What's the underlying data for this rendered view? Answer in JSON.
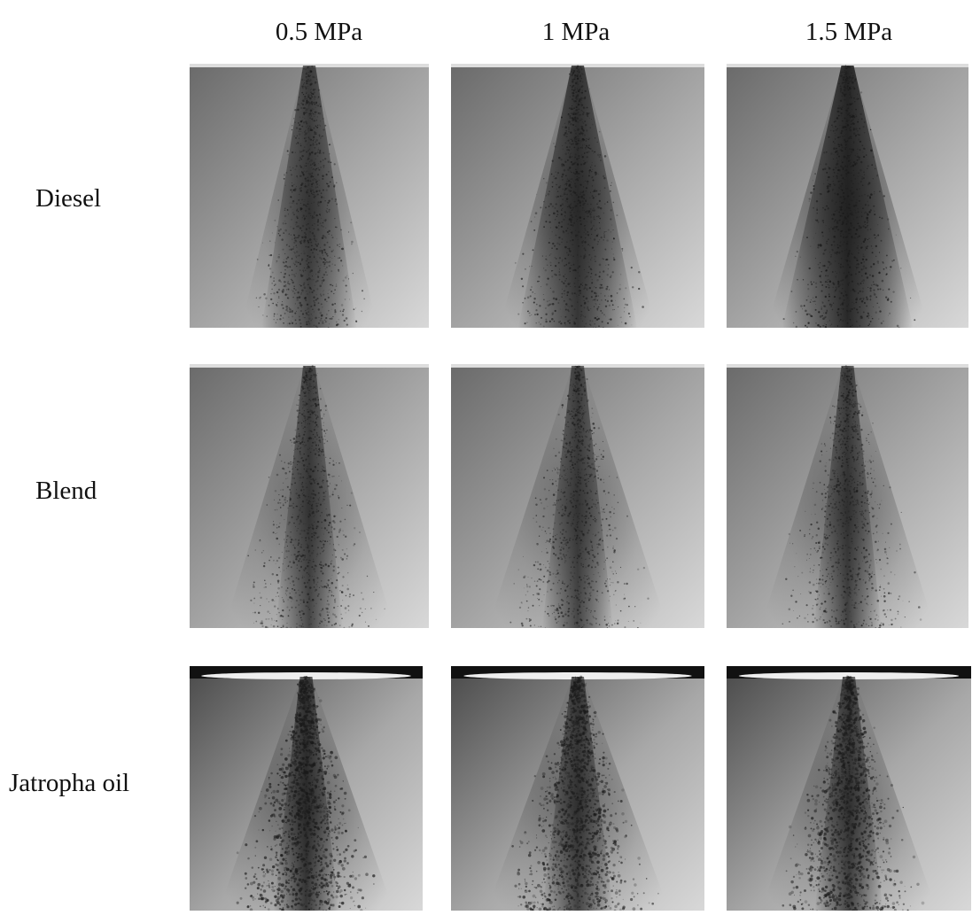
{
  "columns": [
    {
      "label": "0.5 MPa"
    },
    {
      "label": "1 MPa"
    },
    {
      "label": "1.5 MPa"
    }
  ],
  "rows": [
    {
      "label": "Diesel",
      "style": "diesel",
      "density": [
        0.55,
        0.75,
        0.95
      ]
    },
    {
      "label": "Blend",
      "style": "blend",
      "density": [
        0.55,
        0.55,
        0.6
      ]
    },
    {
      "label": "Jatropha oil",
      "style": "jatropha",
      "density": [
        0.75,
        0.6,
        0.6
      ]
    }
  ],
  "colors": {
    "background_light": "#d8d8d8",
    "background_dark": "#5e5e5e",
    "spray_core": "#1e1e1e"
  }
}
